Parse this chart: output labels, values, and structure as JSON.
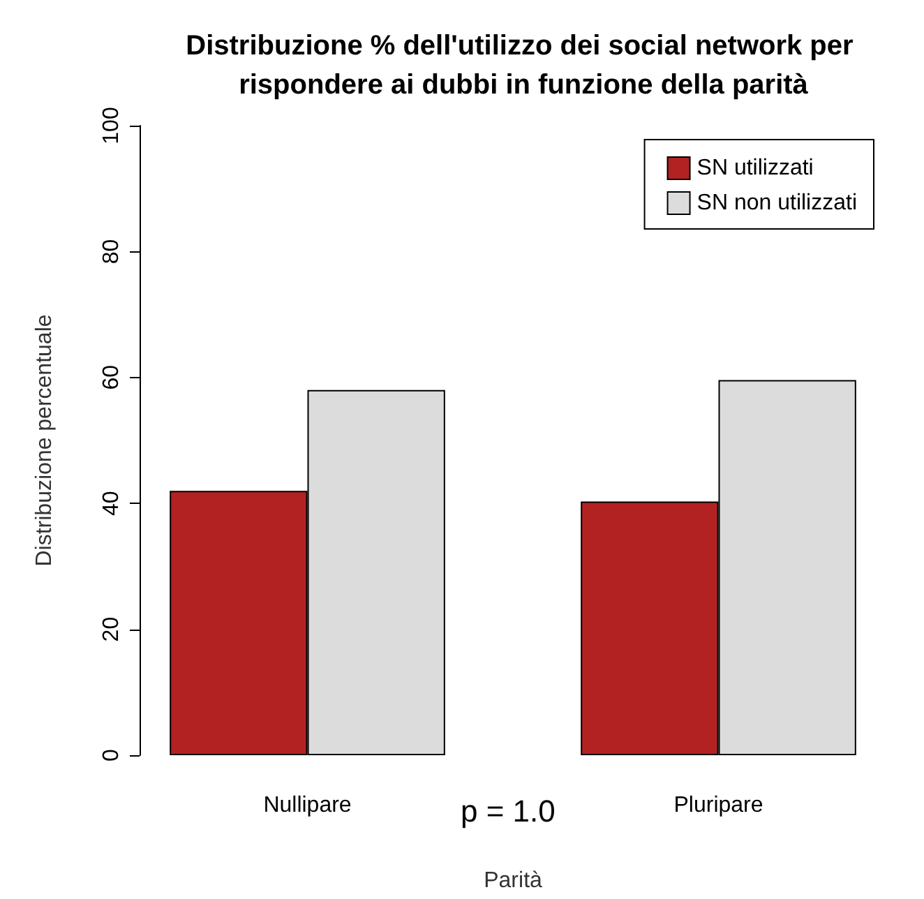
{
  "chart_data": {
    "type": "bar",
    "title": "Distribuzione % dell'utilizzo dei social network per rispondere ai dubbi in funzione della parità",
    "xlabel": "Parità",
    "ylabel": "Distribuzione percentuale",
    "categories": [
      "Nullipare",
      "Pluripare"
    ],
    "series": [
      {
        "name": "SN utilizzati",
        "color": "#b22222",
        "values": [
          42,
          40.3
        ]
      },
      {
        "name": "SN non utilizzati",
        "color": "#dcdcdc",
        "values": [
          58,
          59.6
        ]
      }
    ],
    "ylim": [
      0,
      100
    ],
    "yticks": [
      0,
      20,
      40,
      60,
      80,
      100
    ],
    "grid": false,
    "legend": "top right",
    "annotations": [
      "p = 1.0"
    ]
  }
}
